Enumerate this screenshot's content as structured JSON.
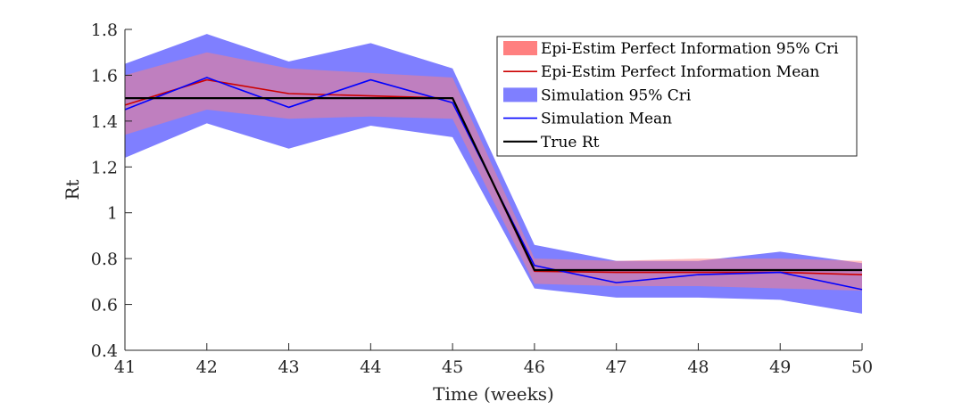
{
  "chart_data": {
    "type": "line",
    "title": "",
    "xlabel": "Time  (weeks)",
    "ylabel": "Rt",
    "xlim": [
      41,
      50
    ],
    "ylim": [
      0.4,
      1.8
    ],
    "x": [
      41,
      42,
      43,
      44,
      45,
      46,
      47,
      48,
      49,
      50
    ],
    "x_ticks": [
      "41",
      "42",
      "43",
      "44",
      "45",
      "46",
      "47",
      "48",
      "49",
      "50"
    ],
    "y_ticks": [
      "0.4",
      "0.6",
      "0.8",
      "1",
      "1.2",
      "1.4",
      "1.6",
      "1.8"
    ],
    "grid": false,
    "legend_position": "top-right",
    "series": [
      {
        "name": "Epi-Estim  Perfect  Information  95% Cri",
        "kind": "band",
        "color": "#ff8080",
        "lower": [
          1.34,
          1.45,
          1.41,
          1.42,
          1.41,
          0.69,
          0.68,
          0.68,
          0.67,
          0.66
        ],
        "upper": [
          1.6,
          1.7,
          1.63,
          1.61,
          1.59,
          0.8,
          0.79,
          0.8,
          0.8,
          0.79
        ]
      },
      {
        "name": "Epi-Estim  Perfect  Information  Mean",
        "kind": "line",
        "color": "#cc0000",
        "values": [
          1.47,
          1.58,
          1.52,
          1.51,
          1.5,
          0.745,
          0.74,
          0.74,
          0.74,
          0.73
        ]
      },
      {
        "name": "Simulation  95% Cri",
        "kind": "band",
        "color": "#7f7fff",
        "lower": [
          1.24,
          1.39,
          1.28,
          1.38,
          1.33,
          0.67,
          0.63,
          0.63,
          0.62,
          0.56
        ],
        "upper": [
          1.65,
          1.78,
          1.66,
          1.74,
          1.63,
          0.86,
          0.79,
          0.79,
          0.83,
          0.78
        ]
      },
      {
        "name": "Simulation  Mean",
        "kind": "line",
        "color": "#0000ff",
        "values": [
          1.45,
          1.59,
          1.46,
          1.58,
          1.48,
          0.77,
          0.695,
          0.73,
          0.74,
          0.665
        ]
      },
      {
        "name": "True  Rt",
        "kind": "line",
        "color": "#000000",
        "values": [
          1.5,
          1.5,
          1.5,
          1.5,
          1.5,
          0.75,
          0.75,
          0.75,
          0.75,
          0.75
        ]
      }
    ]
  }
}
